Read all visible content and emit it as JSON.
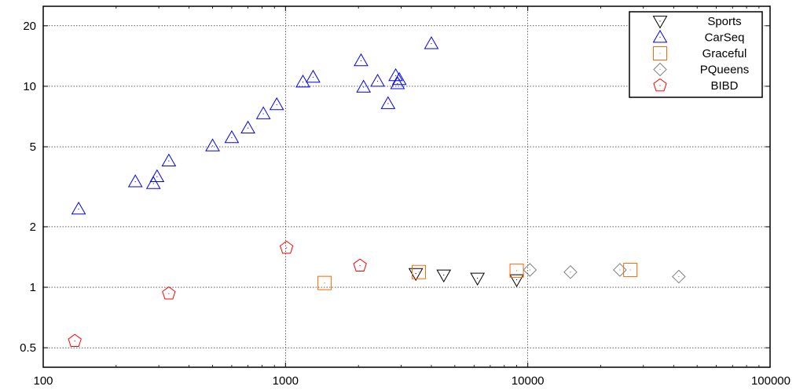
{
  "chart_data": {
    "type": "scatter",
    "title": "",
    "xlabel": "",
    "ylabel": "",
    "xscale": "log",
    "yscale": "log",
    "xlim": [
      100,
      100000
    ],
    "ylim": [
      0.4,
      25
    ],
    "grid": true,
    "legend_position": "top-right",
    "xticks": [
      {
        "value": 100,
        "label": "100"
      },
      {
        "value": 1000,
        "label": "1000"
      },
      {
        "value": 10000,
        "label": "10000"
      },
      {
        "value": 100000,
        "label": "100000"
      }
    ],
    "yticks": [
      {
        "value": 0.5,
        "label": "0.5"
      },
      {
        "value": 1,
        "label": "1"
      },
      {
        "value": 2,
        "label": "2"
      },
      {
        "value": 5,
        "label": "5"
      },
      {
        "value": 10,
        "label": "10"
      },
      {
        "value": 20,
        "label": "20"
      }
    ],
    "series": [
      {
        "name": "Sports",
        "marker": "triangle-down",
        "color": "#000000",
        "points": [
          [
            3450,
            1.17
          ],
          [
            4500,
            1.15
          ],
          [
            6200,
            1.11
          ],
          [
            9000,
            1.09
          ]
        ]
      },
      {
        "name": "CarSeq",
        "marker": "triangle-up",
        "color": "#0000ff",
        "points": [
          [
            140,
            2.45
          ],
          [
            240,
            3.35
          ],
          [
            285,
            3.28
          ],
          [
            295,
            3.55
          ],
          [
            330,
            4.25
          ],
          [
            500,
            5.05
          ],
          [
            600,
            5.55
          ],
          [
            700,
            6.2
          ],
          [
            810,
            7.3
          ],
          [
            920,
            8.1
          ],
          [
            1180,
            10.5
          ],
          [
            1300,
            11.1
          ],
          [
            2050,
            13.4
          ],
          [
            2100,
            9.9
          ],
          [
            2400,
            10.6
          ],
          [
            2650,
            8.2
          ],
          [
            2850,
            11.3
          ],
          [
            2900,
            10.3
          ],
          [
            2950,
            10.8
          ],
          [
            4000,
            16.3
          ]
        ]
      },
      {
        "name": "Graceful",
        "marker": "square",
        "color": "#ff6600",
        "points": [
          [
            1450,
            1.05
          ],
          [
            3550,
            1.19
          ],
          [
            9000,
            1.21
          ],
          [
            26500,
            1.22
          ]
        ]
      },
      {
        "name": "PQueens",
        "marker": "diamond",
        "color": "#808080",
        "points": [
          [
            10200,
            1.22
          ],
          [
            15000,
            1.19
          ],
          [
            24000,
            1.22
          ],
          [
            42000,
            1.13
          ]
        ]
      },
      {
        "name": "BIBD",
        "marker": "pentagon",
        "color": "#ff0000",
        "points": [
          [
            135,
            0.54
          ],
          [
            330,
            0.93
          ],
          [
            1010,
            1.57
          ],
          [
            2030,
            1.28
          ]
        ]
      }
    ]
  }
}
